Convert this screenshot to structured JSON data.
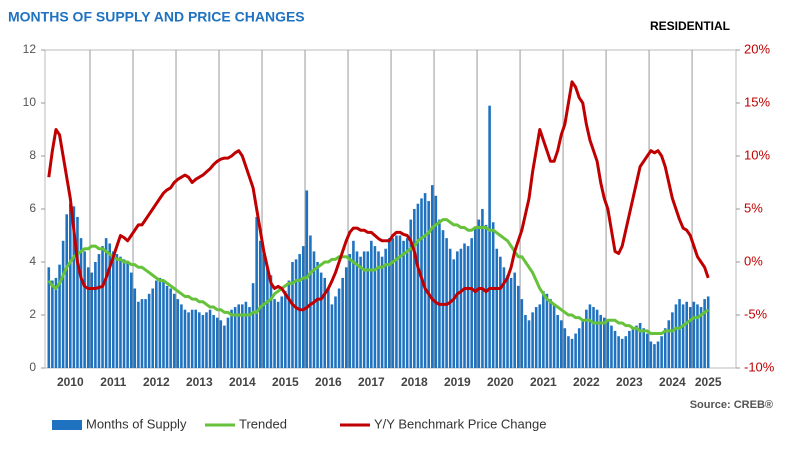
{
  "chart_data": {
    "type": "bar_line",
    "title": "MONTHS OF SUPPLY AND PRICE CHANGES",
    "subtitle": "RESIDENTIAL",
    "source": "Source: CREB®",
    "categories": [
      null,
      null,
      null,
      null,
      null,
      null,
      "2010",
      null,
      null,
      null,
      null,
      null,
      null,
      null,
      null,
      null,
      null,
      null,
      "2011",
      null,
      null,
      null,
      null,
      null,
      null,
      null,
      null,
      null,
      null,
      null,
      "2012",
      null,
      null,
      null,
      null,
      null,
      null,
      null,
      null,
      null,
      null,
      null,
      "2013",
      null,
      null,
      null,
      null,
      null,
      null,
      null,
      null,
      null,
      null,
      null,
      "2014",
      null,
      null,
      null,
      null,
      null,
      null,
      null,
      null,
      null,
      null,
      null,
      "2015",
      null,
      null,
      null,
      null,
      null,
      null,
      null,
      null,
      null,
      null,
      null,
      "2016",
      null,
      null,
      null,
      null,
      null,
      null,
      null,
      null,
      null,
      null,
      null,
      "2017",
      null,
      null,
      null,
      null,
      null,
      null,
      null,
      null,
      null,
      null,
      null,
      "2018",
      null,
      null,
      null,
      null,
      null,
      null,
      null,
      null,
      null,
      null,
      null,
      "2019",
      null,
      null,
      null,
      null,
      null,
      null,
      null,
      null,
      null,
      null,
      null,
      "2020",
      null,
      null,
      null,
      null,
      null,
      null,
      null,
      null,
      null,
      null,
      null,
      "2021",
      null,
      null,
      null,
      null,
      null,
      null,
      null,
      null,
      null,
      null,
      null,
      "2022",
      null,
      null,
      null,
      null,
      null,
      null,
      null,
      null,
      null,
      null,
      null,
      "2023",
      null,
      null,
      null,
      null,
      null,
      null,
      null,
      null,
      null,
      null,
      null,
      "2024",
      null,
      null,
      null,
      null,
      null,
      null,
      null,
      null,
      null,
      "2025"
    ],
    "ylim": [
      0,
      12
    ],
    "yticks": [
      0,
      2,
      4,
      6,
      8,
      10,
      12
    ],
    "y2lim": [
      -10,
      20
    ],
    "y2ticks": [
      {
        "value": -10,
        "label": "-10%"
      },
      {
        "value": -5,
        "label": "-5%"
      },
      {
        "value": 0,
        "label": "0%"
      },
      {
        "value": 5,
        "label": "5%"
      },
      {
        "value": 10,
        "label": "10%"
      },
      {
        "value": 15,
        "label": "15%"
      },
      {
        "value": 20,
        "label": "20%"
      }
    ],
    "series": [
      {
        "name": "Months of Supply",
        "type": "bar",
        "color": "#1f72c0",
        "values": [
          3.8,
          3.3,
          3.4,
          3.9,
          4.8,
          5.8,
          6.2,
          6.1,
          5.7,
          4.9,
          4.4,
          3.8,
          3.6,
          4.0,
          4.3,
          4.6,
          4.9,
          4.7,
          4.4,
          4.3,
          4.2,
          4.1,
          4.0,
          3.6,
          3.0,
          2.5,
          2.6,
          2.6,
          2.8,
          3.0,
          3.3,
          3.4,
          3.3,
          3.1,
          3.0,
          2.8,
          2.6,
          2.4,
          2.2,
          2.1,
          2.2,
          2.2,
          2.1,
          2.0,
          2.1,
          2.2,
          2.0,
          1.9,
          1.8,
          1.6,
          1.9,
          2.2,
          2.3,
          2.4,
          2.4,
          2.5,
          2.3,
          3.2,
          5.7,
          4.8,
          4.3,
          3.8,
          3.5,
          2.6,
          2.5,
          2.7,
          2.9,
          3.3,
          4.0,
          4.1,
          4.3,
          4.6,
          6.7,
          5.0,
          4.4,
          4.0,
          3.6,
          3.4,
          3.0,
          2.4,
          2.7,
          3.0,
          3.4,
          3.8,
          4.3,
          4.8,
          4.4,
          4.2,
          4.4,
          4.4,
          4.8,
          4.6,
          4.4,
          4.2,
          4.5,
          4.9,
          4.9,
          5.0,
          5.0,
          4.8,
          4.9,
          5.6,
          6.0,
          6.2,
          6.4,
          6.6,
          6.3,
          6.9,
          6.5,
          5.6,
          5.2,
          4.9,
          4.5,
          4.1,
          4.4,
          4.5,
          4.7,
          4.6,
          4.9,
          5.3,
          5.6,
          6.0,
          5.4,
          9.9,
          5.5,
          4.5,
          4.2,
          3.8,
          3.5,
          3.4,
          3.6,
          3.1,
          2.6,
          2.0,
          1.8,
          2.1,
          2.3,
          2.4,
          2.9,
          2.8,
          2.6,
          2.4,
          2.0,
          1.8,
          1.5,
          1.2,
          1.1,
          1.3,
          1.5,
          1.8,
          2.2,
          2.4,
          2.3,
          2.2,
          2.0,
          1.9,
          1.8,
          1.6,
          1.4,
          1.2,
          1.1,
          1.2,
          1.4,
          1.5,
          1.6,
          1.7,
          1.5,
          1.3,
          1.0,
          0.9,
          1.0,
          1.2,
          1.5,
          1.8,
          2.1,
          2.4,
          2.6,
          2.4,
          2.5,
          2.3,
          2.5,
          2.4,
          2.3,
          2.6,
          2.7
        ]
      },
      {
        "name": "Trended",
        "type": "line",
        "color": "#66c23a",
        "values": [
          3.3,
          3.1,
          3.0,
          3.2,
          3.5,
          3.8,
          4.0,
          4.2,
          4.3,
          4.4,
          4.5,
          4.5,
          4.6,
          4.6,
          4.5,
          4.5,
          4.4,
          4.3,
          4.2,
          4.1,
          4.1,
          4.0,
          4.0,
          3.9,
          3.9,
          3.8,
          3.8,
          3.7,
          3.6,
          3.5,
          3.4,
          3.3,
          3.3,
          3.2,
          3.1,
          3.0,
          2.9,
          2.8,
          2.7,
          2.7,
          2.6,
          2.6,
          2.5,
          2.5,
          2.4,
          2.3,
          2.3,
          2.2,
          2.2,
          2.1,
          2.1,
          2.0,
          2.0,
          2.0,
          2.0,
          2.0,
          2.0,
          2.1,
          2.1,
          2.3,
          2.4,
          2.5,
          2.6,
          2.8,
          2.9,
          3.0,
          3.1,
          3.2,
          3.2,
          3.3,
          3.3,
          3.4,
          3.4,
          3.6,
          3.7,
          3.8,
          3.9,
          4.0,
          4.0,
          4.1,
          4.1,
          4.2,
          4.2,
          4.2,
          4.1,
          4.0,
          3.9,
          3.8,
          3.7,
          3.7,
          3.7,
          3.7,
          3.8,
          3.8,
          3.9,
          3.9,
          4.0,
          4.1,
          4.2,
          4.3,
          4.4,
          4.5,
          4.6,
          4.8,
          4.9,
          5.0,
          5.1,
          5.3,
          5.4,
          5.5,
          5.6,
          5.6,
          5.5,
          5.4,
          5.4,
          5.3,
          5.3,
          5.2,
          5.2,
          5.3,
          5.3,
          5.3,
          5.3,
          5.2,
          5.2,
          5.1,
          5.0,
          4.9,
          4.8,
          4.6,
          4.4,
          4.2,
          4.2,
          4.0,
          3.8,
          3.6,
          3.3,
          3.0,
          2.8,
          2.6,
          2.5,
          2.4,
          2.3,
          2.2,
          2.1,
          2.0,
          2.0,
          1.9,
          1.9,
          1.8,
          1.8,
          1.8,
          1.7,
          1.7,
          1.7,
          1.7,
          1.8,
          1.8,
          1.8,
          1.7,
          1.7,
          1.6,
          1.6,
          1.5,
          1.5,
          1.4,
          1.4,
          1.4,
          1.3,
          1.3,
          1.3,
          1.3,
          1.4,
          1.4,
          1.4,
          1.5,
          1.5,
          1.6,
          1.7,
          1.8,
          1.9,
          1.9,
          2.0,
          2.1,
          2.2
        ]
      },
      {
        "name": "Y/Y Benchmark Price Change",
        "type": "line",
        "axis": "y2",
        "color": "#c00000",
        "values": [
          8,
          10.5,
          12.5,
          12,
          10,
          8,
          6,
          3,
          0,
          -1.5,
          -2.3,
          -2.5,
          -2.5,
          -2.5,
          -2.4,
          -2.3,
          -1.5,
          -0.5,
          0.5,
          1.5,
          2.5,
          2.3,
          2,
          2.5,
          3,
          3.5,
          3.5,
          4,
          4.5,
          5,
          5.5,
          6,
          6.5,
          6.8,
          7,
          7.5,
          7.8,
          8,
          8.2,
          8,
          7.5,
          7.8,
          8,
          8.2,
          8.5,
          8.8,
          9.2,
          9.5,
          9.7,
          9.8,
          9.8,
          10,
          10.3,
          10.5,
          10,
          9,
          8,
          7,
          5,
          3,
          1,
          -0.5,
          -2,
          -2.5,
          -2.3,
          -2.5,
          -3,
          -3.5,
          -4,
          -4.3,
          -4.5,
          -4.5,
          -4.3,
          -4,
          -3.8,
          -3.5,
          -3.5,
          -3,
          -2.5,
          -1.8,
          -1,
          0,
          1,
          2,
          2.8,
          3.2,
          3.2,
          3,
          3,
          2.8,
          2.8,
          2.5,
          2.2,
          2,
          2,
          2,
          2.5,
          2.8,
          2.8,
          2.6,
          2.5,
          2,
          1,
          -0.5,
          -1.5,
          -2.5,
          -3,
          -3.5,
          -3.8,
          -4,
          -4,
          -4,
          -3.8,
          -3.5,
          -3,
          -2.8,
          -2.5,
          -2.5,
          -2.5,
          -2.8,
          -2.5,
          -2.5,
          -2.8,
          -2.5,
          -2.5,
          -2.5,
          -2.5,
          -2,
          -1.5,
          -0.5,
          1,
          2,
          3,
          4.5,
          6,
          8.5,
          10.5,
          12.5,
          11.5,
          10.5,
          9.5,
          9.5,
          10.5,
          12,
          13,
          15,
          17,
          16.5,
          15.5,
          15,
          13,
          11.5,
          10.5,
          9.5,
          7.5,
          6,
          5,
          3,
          1,
          0.8,
          1.5,
          3,
          4.5,
          6,
          7.5,
          9,
          9.5,
          10,
          10.5,
          10.3,
          10.5,
          10,
          9,
          7.5,
          6,
          5,
          4,
          3.2,
          3,
          2.5,
          1.5,
          0.5,
          0,
          -0.5,
          -1.5
        ]
      }
    ]
  }
}
